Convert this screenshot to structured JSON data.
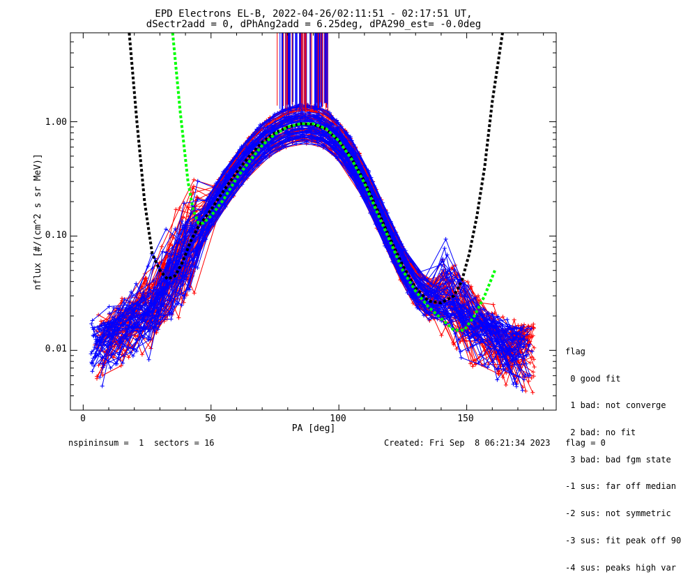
{
  "chart_data": {
    "type": "line",
    "title": "EPD Electrons EL-B, 2022-04-26/02:11:51 - 02:17:51 UT,",
    "subtitle": "dSectr2add = 0, dPhAng2add = 6.25deg, dPA290_est=  -0.0deg",
    "xlabel": "PA [deg]",
    "ylabel": "nflux [#/(cm^2 s sr MeV)]",
    "xlim": [
      -5,
      185
    ],
    "ylim": [
      0.003,
      6
    ],
    "yscale": "log",
    "x_ticks": [
      "0",
      "50",
      "100",
      "150"
    ],
    "y_ticks": [
      "0.01",
      "0.10",
      "1.00"
    ],
    "grid": false,
    "series": [
      {
        "color": "#000000",
        "style": "dashed",
        "x": [
          18,
          21,
          24,
          27,
          30,
          33,
          36,
          39,
          42,
          45,
          50,
          55,
          60,
          65,
          70,
          75,
          80,
          85,
          90,
          95,
          100,
          105,
          110,
          115,
          120,
          125,
          130,
          135,
          140,
          145,
          148,
          151,
          154,
          157,
          160,
          164
        ],
        "y": [
          6.0,
          1.0,
          0.2,
          0.07,
          0.05,
          0.042,
          0.045,
          0.06,
          0.09,
          0.12,
          0.17,
          0.25,
          0.36,
          0.5,
          0.66,
          0.8,
          0.9,
          0.96,
          0.95,
          0.86,
          0.68,
          0.48,
          0.3,
          0.17,
          0.095,
          0.055,
          0.035,
          0.027,
          0.026,
          0.03,
          0.04,
          0.07,
          0.15,
          0.4,
          1.5,
          6.0
        ]
      },
      {
        "color": "#00ff00",
        "style": "dashed",
        "x": [
          35,
          38,
          41,
          43,
          45,
          47,
          50,
          55,
          60,
          65,
          70,
          75,
          80,
          85,
          90,
          95,
          100,
          105,
          110,
          115,
          120,
          125,
          130,
          135,
          140,
          145,
          149,
          153,
          157,
          161
        ],
        "y": [
          6.0,
          1.2,
          0.3,
          0.17,
          0.13,
          0.13,
          0.15,
          0.21,
          0.32,
          0.45,
          0.62,
          0.78,
          0.9,
          0.96,
          0.96,
          0.87,
          0.68,
          0.47,
          0.29,
          0.16,
          0.09,
          0.05,
          0.033,
          0.024,
          0.019,
          0.015,
          0.015,
          0.02,
          0.03,
          0.05
        ]
      }
    ],
    "scatter_sets": [
      {
        "color": "#ff0000",
        "label": "flux traces (red)"
      },
      {
        "color": "#0000ff",
        "label": "flux traces (blue)"
      }
    ]
  },
  "legend": {
    "title": "flag",
    "items": [
      " 0 good fit",
      " 1 bad: not converge",
      " 2 bad: no fit",
      " 3 bad: bad fgm state",
      "-1 sus: far off median",
      "-2 sus: not symmetric",
      "-3 sus: fit peak off 90",
      "-4 sus: peaks high var"
    ]
  },
  "footer": {
    "left": "nspininsum =  1  sectors = 16",
    "right": "Created: Fri Sep  8 06:21:34 2023   flag = 0"
  }
}
